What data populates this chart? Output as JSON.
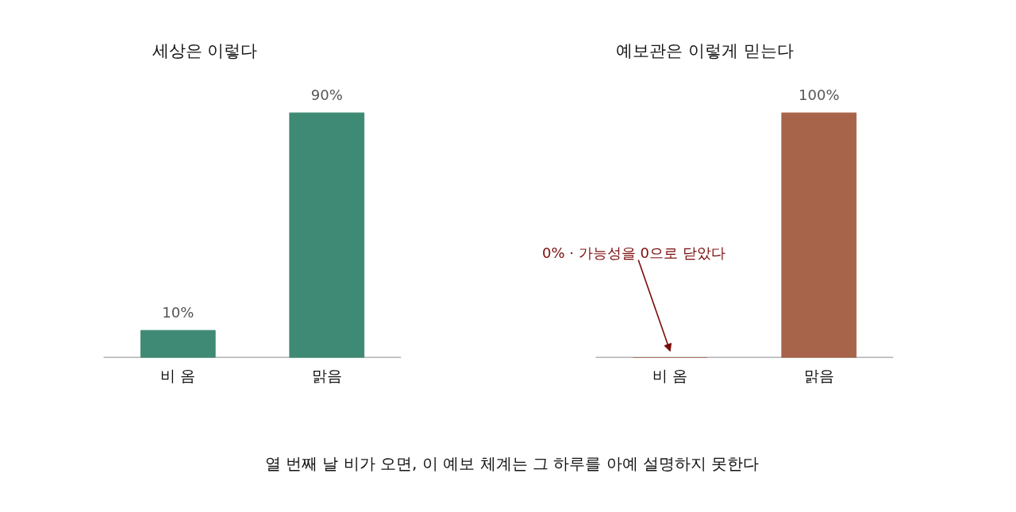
{
  "chart_data": [
    {
      "type": "bar",
      "title": "세상은 이렇다",
      "categories": [
        "비 옴",
        "맑음"
      ],
      "values": [
        10,
        90
      ],
      "value_labels": [
        "10%",
        "90%"
      ],
      "color": "#3f8a74",
      "grid": false
    },
    {
      "type": "bar",
      "title": "예보관은 이렇게 믿는다",
      "categories": [
        "비 옴",
        "맑음"
      ],
      "values": [
        0,
        100
      ],
      "value_labels": [
        null,
        "100%"
      ],
      "color": "#a8644a",
      "grid": false,
      "annotations": [
        {
          "text": "0% · 가능성을 0으로 닫았다",
          "x": "비 옴",
          "y": 0
        },
        "열 번째 날 비가 오면, 이 예보 체계는 그 하루를 아예 설명하지 못한다"
      ]
    }
  ]
}
